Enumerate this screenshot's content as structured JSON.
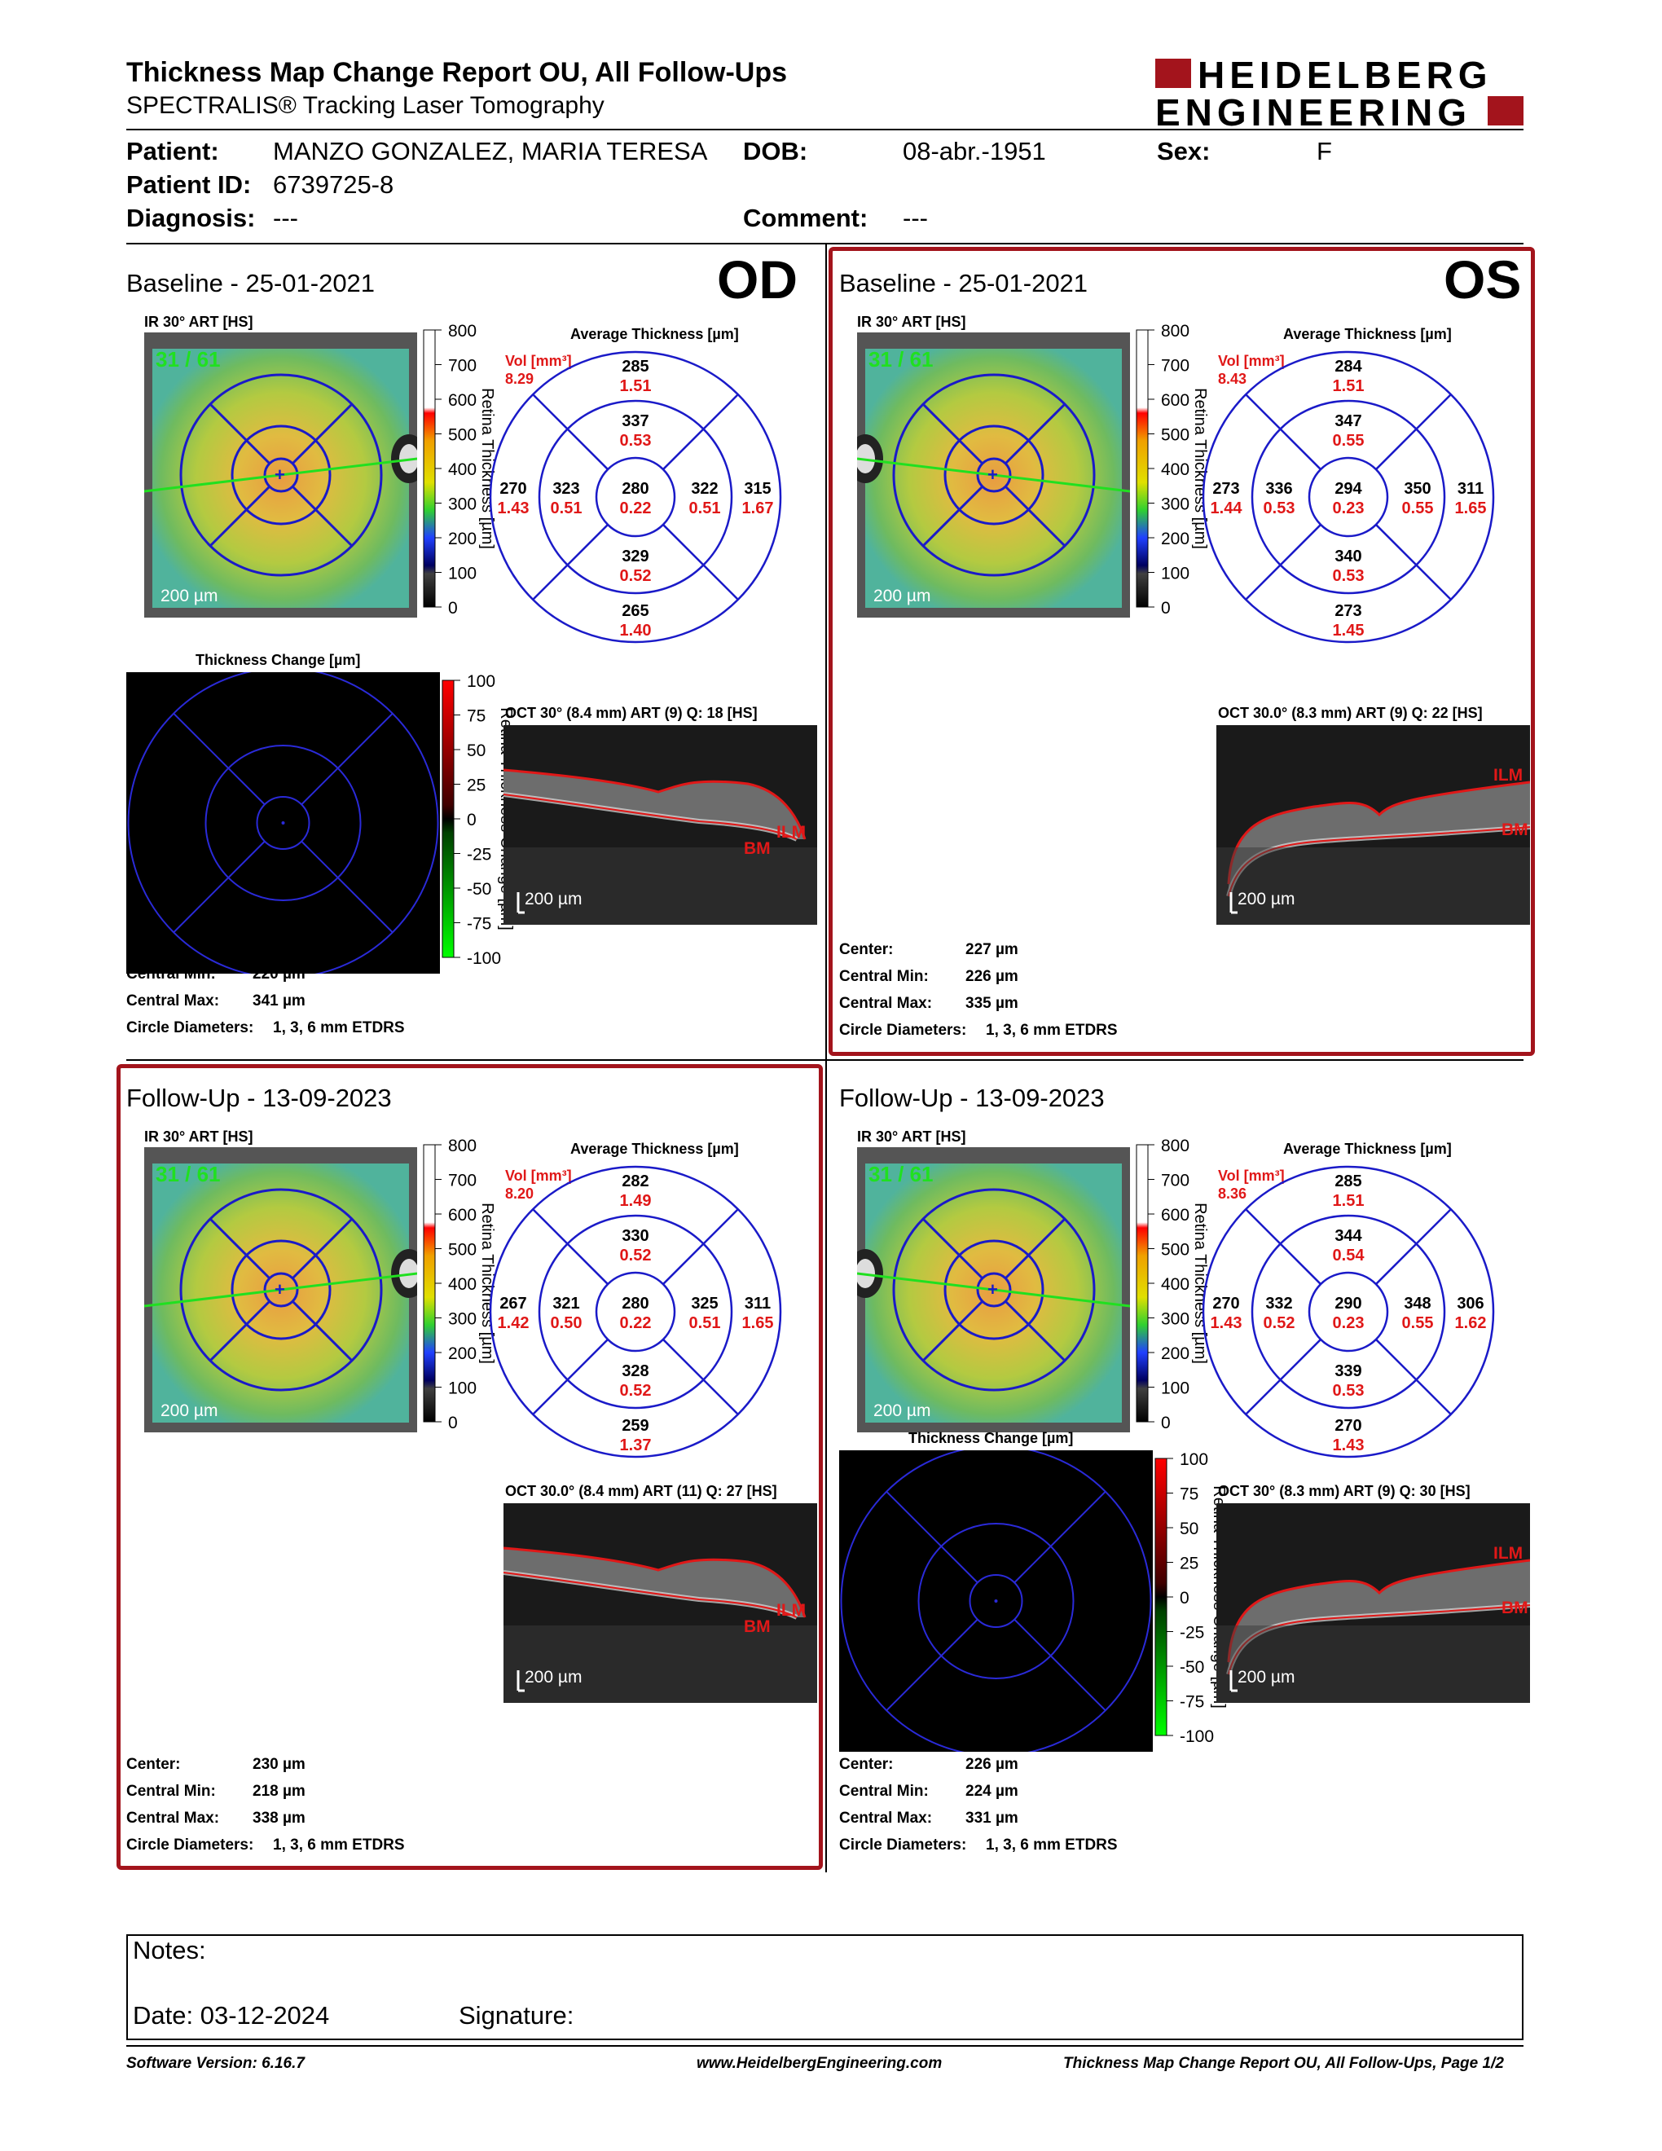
{
  "header": {
    "title": "Thickness Map Change Report OU, All Follow-Ups",
    "subtitle": "SPECTRALIS® Tracking Laser Tomography",
    "logo_line1": "HEIDELBERG",
    "logo_line2": "ENGINEERING"
  },
  "patient": {
    "patient_label": "Patient:",
    "patient_value": "MANZO GONZALEZ, MARIA TERESA",
    "dob_label": "DOB:",
    "dob_value": "08-abr.-1951",
    "sex_label": "Sex:",
    "sex_value": "F",
    "id_label": "Patient ID:",
    "id_value": "6739725-8",
    "diagnosis_label": "Diagnosis:",
    "diagnosis_value": "---",
    "comment_label": "Comment:",
    "comment_value": "---"
  },
  "labels": {
    "ir": "IR 30° ART [HS]",
    "avg": "Average Thickness [µm]",
    "vol": "Vol [mm³]",
    "thick_change": "Thickness Change [µm]",
    "scale200": "200 µm",
    "ret_thick": "Retina Thickness [µm]",
    "ret_thick_change": "Retina Thickness Change [µm]",
    "ilm": "ILM",
    "bm": "BM",
    "center": "Center:",
    "cmin": "Central Min:",
    "cmax": "Central Max:",
    "circ": "Circle Diameters:"
  },
  "scale_ticks": [
    "800",
    "700",
    "600",
    "500",
    "400",
    "300",
    "200",
    "100",
    "0"
  ],
  "change_ticks": [
    "100",
    "75",
    "50",
    "25",
    "0",
    "-25",
    "-50",
    "-75",
    "-100"
  ],
  "panels": {
    "od_base": {
      "title": "Baseline - 25-01-2021",
      "eye": "OD",
      "seg": "31 / 61",
      "vol": "8.29",
      "etdrs": {
        "ctr": [
          "280",
          "0.22"
        ],
        "is": [
          "337",
          "0.53"
        ],
        "os": [
          "285",
          "1.51"
        ],
        "ii": [
          "329",
          "0.52"
        ],
        "oi": [
          "265",
          "1.40"
        ],
        "in": [
          "322",
          "0.51"
        ],
        "on": [
          "315",
          "1.67"
        ],
        "it": [
          "323",
          "0.51"
        ],
        "ot": [
          "270",
          "1.43"
        ]
      },
      "oct": "OCT 30° (8.4 mm) ART (9) Q: 18 [HS]",
      "circ": "1, 3, 6 mm ETDRS",
      "center": "",
      "cmin": "220 µm",
      "cmax": "341 µm"
    },
    "os_base": {
      "title": "Baseline - 25-01-2021",
      "eye": "OS",
      "seg": "31 / 61",
      "vol": "8.43",
      "etdrs": {
        "ctr": [
          "294",
          "0.23"
        ],
        "is": [
          "347",
          "0.55"
        ],
        "os": [
          "284",
          "1.51"
        ],
        "ii": [
          "340",
          "0.53"
        ],
        "oi": [
          "273",
          "1.45"
        ],
        "in": [
          "350",
          "0.55"
        ],
        "on": [
          "311",
          "1.65"
        ],
        "it": [
          "336",
          "0.53"
        ],
        "ot": [
          "273",
          "1.44"
        ]
      },
      "oct": "OCT 30.0° (8.3 mm) ART (9) Q: 22 [HS]",
      "circ": "1, 3, 6 mm ETDRS",
      "center": "227 µm",
      "cmin": "226 µm",
      "cmax": "335 µm"
    },
    "od_fu": {
      "title": "Follow-Up - 13-09-2023",
      "seg": "31 / 61",
      "vol": "8.20",
      "etdrs": {
        "ctr": [
          "280",
          "0.22"
        ],
        "is": [
          "330",
          "0.52"
        ],
        "os": [
          "282",
          "1.49"
        ],
        "ii": [
          "328",
          "0.52"
        ],
        "oi": [
          "259",
          "1.37"
        ],
        "in": [
          "325",
          "0.51"
        ],
        "on": [
          "311",
          "1.65"
        ],
        "it": [
          "321",
          "0.50"
        ],
        "ot": [
          "267",
          "1.42"
        ]
      },
      "oct": "OCT 30.0° (8.4 mm) ART (11) Q: 27 [HS]",
      "circ": "1, 3, 6 mm ETDRS",
      "center": "230 µm",
      "cmin": "218 µm",
      "cmax": "338 µm"
    },
    "os_fu": {
      "title": "Follow-Up - 13-09-2023",
      "seg": "31 / 61",
      "vol": "8.36",
      "etdrs": {
        "ctr": [
          "290",
          "0.23"
        ],
        "is": [
          "344",
          "0.54"
        ],
        "os": [
          "285",
          "1.51"
        ],
        "ii": [
          "339",
          "0.53"
        ],
        "oi": [
          "270",
          "1.43"
        ],
        "in": [
          "348",
          "0.55"
        ],
        "on": [
          "306",
          "1.62"
        ],
        "it": [
          "332",
          "0.52"
        ],
        "ot": [
          "270",
          "1.43"
        ]
      },
      "oct": "OCT 30° (8.3 mm) ART (9) Q: 30 [HS]",
      "circ": "1, 3, 6 mm ETDRS",
      "center": "226 µm",
      "cmin": "224 µm",
      "cmax": "331 µm"
    }
  },
  "notes": {
    "notes_label": "Notes:",
    "date_label": "Date: 03-12-2024",
    "signature_label": "Signature:"
  },
  "footer": {
    "software": "Software Version: 6.16.7",
    "url": "www.HeidelbergEngineering.com",
    "page": "Thickness Map Change Report OU, All Follow-Ups, Page 1/2"
  }
}
